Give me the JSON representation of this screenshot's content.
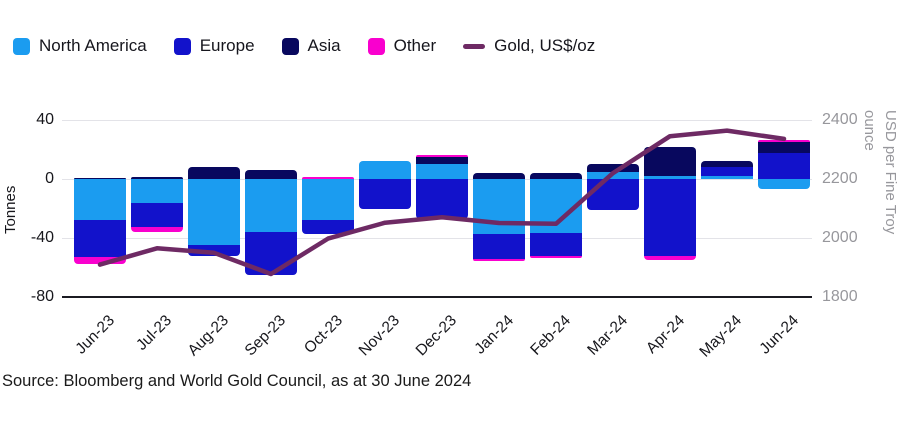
{
  "legend": {
    "items": [
      {
        "label": "North America",
        "color": "#1b9cf0",
        "type": "swatch"
      },
      {
        "label": "Europe",
        "color": "#1212cb",
        "type": "swatch"
      },
      {
        "label": "Asia",
        "color": "#08085e",
        "type": "swatch"
      },
      {
        "label": "Other",
        "color": "#f900ce",
        "type": "swatch"
      },
      {
        "label": "Gold, US$/oz",
        "color": "#6e2a64",
        "type": "line"
      }
    ]
  },
  "left_axis": {
    "title": "Tonnes",
    "ticks": [
      40,
      0,
      -40,
      -80
    ]
  },
  "right_axis": {
    "title": "USD per Fine Troy ounce",
    "ticks": [
      2400,
      2200,
      2000,
      1800
    ]
  },
  "source": "Source: Bloomberg and World Gold Council, as at 30 June 2024",
  "chart_data": {
    "type": "bar",
    "stacked": true,
    "grid": true,
    "legend_position": "top",
    "categories": [
      "Jun-23",
      "Jul-23",
      "Aug-23",
      "Sep-23",
      "Oct-23",
      "Nov-23",
      "Dec-23",
      "Jan-24",
      "Feb-24",
      "Mar-24",
      "Apr-24",
      "May-24",
      "Jun-24"
    ],
    "series": [
      {
        "name": "North America",
        "axis": "left",
        "color": "#1b9cf0",
        "values": [
          -28,
          -16,
          -45,
          -36,
          -28,
          12,
          10.2,
          -37,
          -36.8,
          5,
          2,
          2.2,
          -6.5
        ]
      },
      {
        "name": "Europe",
        "axis": "left",
        "color": "#1212cb",
        "values": [
          -25,
          -16.5,
          -7,
          -29,
          -9.5,
          -20,
          -26.8,
          -17,
          -15.2,
          -21,
          -52,
          5.6,
          17.4
        ]
      },
      {
        "name": "Asia",
        "axis": "left",
        "color": "#08085e",
        "values": [
          1,
          1.5,
          8,
          6,
          0,
          0,
          4.5,
          4.3,
          4,
          5,
          20,
          4.5,
          8
        ]
      },
      {
        "name": "Other",
        "axis": "left",
        "color": "#f900ce",
        "values": [
          -4.5,
          -3.4,
          0,
          0,
          1.3,
          0,
          1.7,
          -1.6,
          -1.5,
          0,
          -3,
          0,
          1.2
        ]
      }
    ],
    "line_series": {
      "name": "Gold, US$/oz",
      "axis": "right",
      "color": "#6e2a64",
      "values": [
        1910,
        1965,
        1950,
        1878,
        1998,
        2052,
        2070,
        2051,
        2048,
        2220,
        2345,
        2364,
        2336
      ]
    },
    "xlabel": "",
    "ylabel_left": "Tonnes",
    "ylabel_right": "USD per Fine Troy ounce",
    "ylim_left": [
      -80,
      40
    ],
    "ylim_right": [
      1800,
      2400
    ]
  }
}
